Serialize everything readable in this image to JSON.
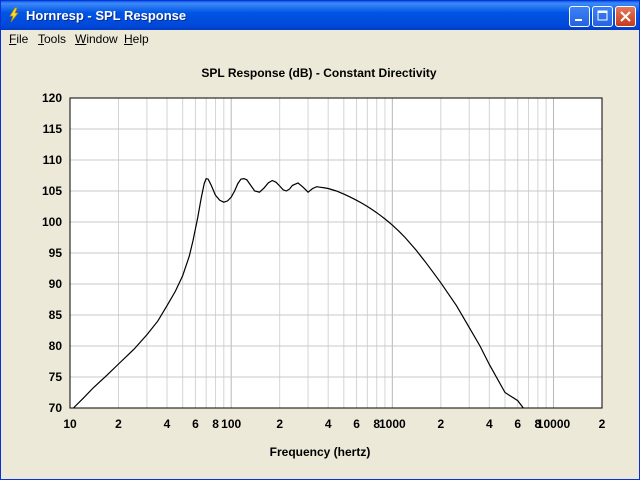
{
  "window": {
    "title": "Hornresp - SPL Response"
  },
  "menu": [
    {
      "label": "File"
    },
    {
      "label": "Tools"
    },
    {
      "label": "Window"
    },
    {
      "label": "Help"
    }
  ],
  "chart_data": {
    "type": "line",
    "title": "SPL Response (dB) - Constant Directivity",
    "xlabel": "Frequency (hertz)",
    "ylabel": "",
    "xscale": "log",
    "xlim": [
      10,
      20000
    ],
    "ylim": [
      70,
      120
    ],
    "y_ticks": [
      120,
      115,
      110,
      105,
      100,
      95,
      90,
      85,
      80,
      75,
      70
    ],
    "x_tick_labels": [
      {
        "x": 10,
        "label": "10"
      },
      {
        "x": 20,
        "label": "2"
      },
      {
        "x": 40,
        "label": "4"
      },
      {
        "x": 60,
        "label": "6"
      },
      {
        "x": 80,
        "label": "8"
      },
      {
        "x": 100,
        "label": "100"
      },
      {
        "x": 200,
        "label": "2"
      },
      {
        "x": 400,
        "label": "4"
      },
      {
        "x": 600,
        "label": "6"
      },
      {
        "x": 800,
        "label": "8"
      },
      {
        "x": 1000,
        "label": "1000"
      },
      {
        "x": 2000,
        "label": "2"
      },
      {
        "x": 4000,
        "label": "4"
      },
      {
        "x": 6000,
        "label": "6"
      },
      {
        "x": 8000,
        "label": "8"
      },
      {
        "x": 10000,
        "label": "10000"
      },
      {
        "x": 20000,
        "label": "2"
      }
    ],
    "grid": true,
    "series": [
      {
        "color": "#000000",
        "x": [
          10.5,
          12,
          14,
          17,
          20,
          25,
          30,
          35,
          40,
          45,
          50,
          55,
          58,
          62,
          65,
          68,
          70,
          72,
          75,
          80,
          85,
          90,
          95,
          100,
          105,
          110,
          115,
          120,
          125,
          130,
          140,
          150,
          160,
          170,
          180,
          190,
          200,
          210,
          220,
          230,
          240,
          260,
          280,
          300,
          320,
          340,
          360,
          380,
          400,
          450,
          500,
          550,
          600,
          650,
          700,
          750,
          800,
          850,
          900,
          950,
          1000,
          1100,
          1200,
          1400,
          1600,
          1800,
          2000,
          2500,
          3000,
          3500,
          4000,
          5000,
          6000,
          6500
        ],
        "y": [
          70,
          71.5,
          73.3,
          75.3,
          77.1,
          79.5,
          81.8,
          84.0,
          86.5,
          88.8,
          91.3,
          94.5,
          97.0,
          100.7,
          103.7,
          106.2,
          107.0,
          106.9,
          106.0,
          104.3,
          103.5,
          103.2,
          103.4,
          104.0,
          105.0,
          106.2,
          106.9,
          107.0,
          106.8,
          106.2,
          105.0,
          104.8,
          105.5,
          106.3,
          106.7,
          106.4,
          105.8,
          105.2,
          105.0,
          105.3,
          105.9,
          106.3,
          105.6,
          104.8,
          105.4,
          105.7,
          105.6,
          105.5,
          105.4,
          105.0,
          104.5,
          104.0,
          103.5,
          103.0,
          102.5,
          102.0,
          101.5,
          101.0,
          100.5,
          100.0,
          99.5,
          98.5,
          97.5,
          95.5,
          93.6,
          91.8,
          90.2,
          86.5,
          83.0,
          80.0,
          77.0,
          72.5,
          71.2,
          70.0
        ]
      }
    ]
  }
}
